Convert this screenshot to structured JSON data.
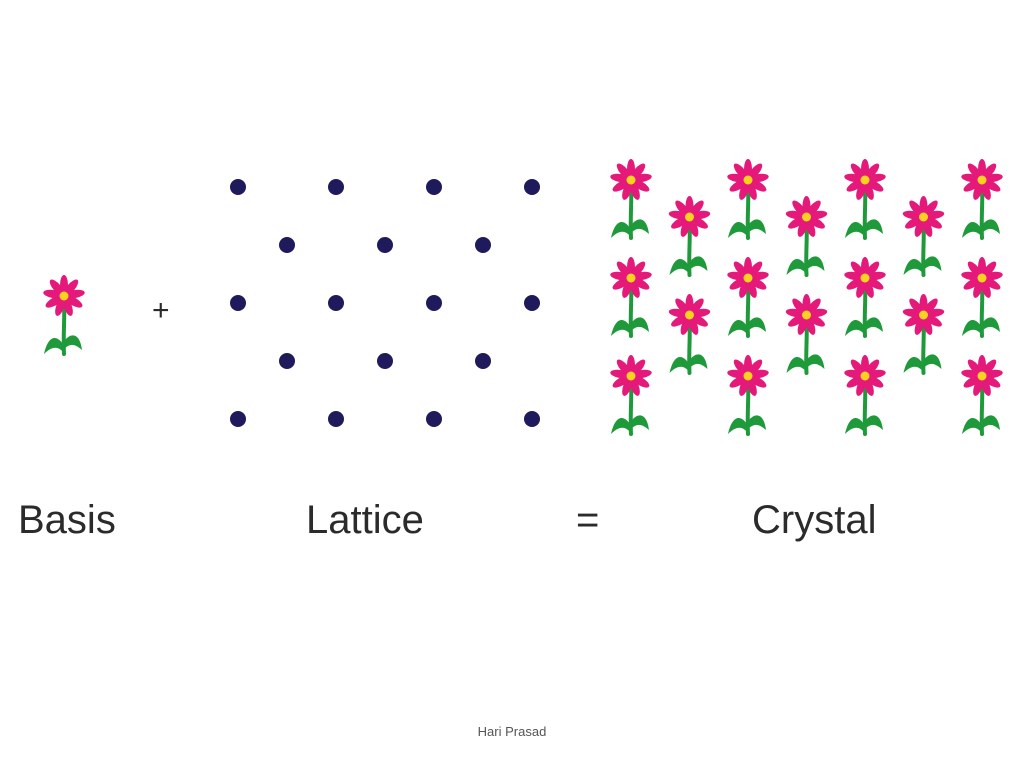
{
  "labels": {
    "basis": "Basis",
    "lattice": "Lattice",
    "crystal": "Crystal"
  },
  "operators": {
    "plus": "+",
    "equals": "="
  },
  "footer": {
    "author": "Hari Prasad"
  },
  "colors": {
    "lattice_point": "#1f1a5c",
    "petal": "#e5197a",
    "flower_center": "#f7d31e",
    "stem": "#1f9a3a",
    "text": "#2b2b2b"
  },
  "lattice": {
    "rows": [
      4,
      3,
      4,
      3,
      4
    ]
  },
  "crystal": {
    "column_heights": [
      3,
      2,
      3,
      2,
      3,
      2,
      3
    ]
  }
}
